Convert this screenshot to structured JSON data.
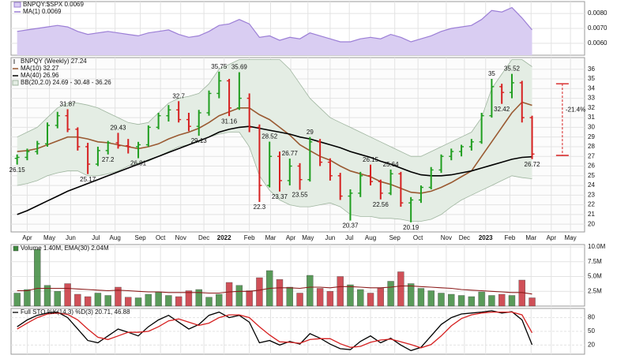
{
  "chart_data": [
    {
      "type": "area",
      "series": [
        {
          "name": "BNPQY:$SPX 0.0069",
          "color": "#9c7fd6",
          "fill": "#d9cdf2",
          "values": [
            0.0068,
            0.0069,
            0.007,
            0.0071,
            0.0072,
            0.0071,
            0.0068,
            0.0066,
            0.0067,
            0.0068,
            0.0067,
            0.0066,
            0.0065,
            0.0067,
            0.0068,
            0.0069,
            0.0066,
            0.0064,
            0.0065,
            0.0068,
            0.0072,
            0.0073,
            0.0076,
            0.0073,
            0.0064,
            0.0065,
            0.0062,
            0.0064,
            0.0063,
            0.0067,
            0.0065,
            0.0063,
            0.0061,
            0.0061,
            0.0063,
            0.0064,
            0.0063,
            0.0066,
            0.0064,
            0.0061,
            0.0063,
            0.0065,
            0.0068,
            0.007,
            0.0071,
            0.0072,
            0.0076,
            0.0082,
            0.0081,
            0.0084,
            0.0077,
            0.0069
          ]
        }
      ],
      "ma_label": "MA(1) 0.0069",
      "ylim": [
        0.0052,
        0.0088
      ],
      "yticks": [
        {
          "value": 0.006,
          "label": "0.0060"
        },
        {
          "value": 0.007,
          "label": "0.0070"
        },
        {
          "value": 0.008,
          "label": "0.0080"
        }
      ]
    },
    {
      "type": "ohlc",
      "title": "BNPQY (Weekly) 27.24",
      "up_color": "#1f9e1f",
      "down_color": "#d62020",
      "open": [
        26.8,
        26.9,
        27.5,
        28.3,
        30.2,
        31.2,
        29.8,
        28.0,
        26.2,
        27.6,
        28.4,
        28.1,
        28.0,
        28.2,
        30.0,
        31.2,
        31.8,
        30.8,
        30.1,
        31.5,
        33.5,
        34.8,
        32.0,
        33.0,
        30.0,
        24.0,
        27.0,
        24.5,
        26.0,
        24.6,
        28.5,
        26.4,
        25.0,
        22.9,
        23.2,
        25.0,
        24.4,
        23.2,
        25.2,
        22.2,
        22.5,
        23.8,
        25.6,
        27.0,
        27.5,
        28.0,
        28.5,
        31.2,
        34.2,
        33.6,
        34.6,
        31.0
      ],
      "high": [
        27.2,
        27.8,
        28.6,
        30.5,
        31.6,
        31.87,
        30.0,
        28.4,
        28.0,
        28.6,
        29.43,
        28.8,
        28.5,
        30.2,
        31.5,
        32.3,
        32.7,
        31.5,
        31.8,
        33.8,
        35.75,
        35.0,
        35.69,
        33.5,
        30.3,
        28.52,
        27.5,
        26.77,
        26.3,
        29.0,
        28.8,
        26.8,
        25.3,
        23.6,
        25.4,
        26.15,
        24.6,
        25.64,
        25.4,
        22.8,
        24.0,
        25.9,
        27.2,
        27.8,
        28.2,
        28.8,
        31.5,
        35.0,
        34.5,
        35.52,
        34.8,
        31.2
      ],
      "low": [
        26.15,
        26.6,
        27.2,
        28.0,
        29.9,
        29.5,
        27.6,
        25.17,
        26.0,
        27.2,
        27.8,
        27.3,
        26.81,
        28.0,
        29.8,
        30.6,
        30.5,
        29.6,
        29.13,
        31.2,
        33.0,
        31.16,
        31.8,
        29.5,
        22.3,
        23.8,
        23.37,
        24.0,
        23.55,
        24.4,
        26.0,
        24.5,
        22.5,
        20.37,
        22.8,
        24.0,
        22.56,
        23.0,
        21.8,
        20.19,
        22.2,
        23.6,
        25.3,
        26.6,
        27.0,
        27.6,
        28.3,
        31.0,
        32.42,
        33.0,
        30.5,
        26.72
      ],
      "close": [
        26.9,
        27.5,
        28.3,
        30.2,
        31.2,
        29.8,
        28.0,
        26.2,
        27.6,
        28.4,
        28.1,
        28.0,
        28.2,
        30.0,
        31.2,
        31.8,
        30.8,
        30.1,
        31.5,
        33.5,
        34.8,
        32.0,
        33.0,
        30.0,
        24.0,
        27.0,
        24.5,
        26.0,
        24.6,
        28.5,
        26.4,
        25.0,
        22.9,
        23.2,
        25.0,
        24.4,
        23.2,
        25.2,
        22.2,
        22.5,
        23.8,
        25.6,
        27.0,
        27.5,
        28.0,
        28.5,
        31.2,
        34.2,
        33.6,
        34.6,
        31.0,
        27.24
      ],
      "series": [
        {
          "name": "MA(10) 32.27",
          "color": "#9a5a32",
          "values": [
            27.5,
            27.6,
            27.8,
            28.2,
            28.6,
            29.0,
            29.0,
            28.8,
            28.5,
            28.4,
            28.2,
            28.0,
            27.8,
            28.0,
            28.3,
            28.8,
            29.2,
            29.5,
            29.9,
            30.5,
            31.2,
            31.6,
            32.0,
            32.0,
            31.3,
            30.8,
            30.0,
            29.2,
            28.2,
            27.6,
            27.0,
            26.6,
            26.0,
            25.5,
            25.2,
            24.9,
            24.4,
            24.1,
            23.7,
            23.3,
            23.2,
            23.4,
            23.8,
            24.3,
            24.9,
            25.5,
            27.0,
            28.5,
            30.0,
            31.5,
            32.6,
            32.27
          ]
        },
        {
          "name": "MA(40) 26.96",
          "color": "#000000",
          "values": [
            21.0,
            21.4,
            21.9,
            22.4,
            22.9,
            23.4,
            23.8,
            24.2,
            24.6,
            25.0,
            25.4,
            25.8,
            26.2,
            26.6,
            27.0,
            27.4,
            27.8,
            28.2,
            28.6,
            29.0,
            29.5,
            29.8,
            30.0,
            30.1,
            29.9,
            29.7,
            29.5,
            29.3,
            29.0,
            28.8,
            28.5,
            28.2,
            27.9,
            27.5,
            27.2,
            26.9,
            26.5,
            26.2,
            25.8,
            25.4,
            25.1,
            25.0,
            25.0,
            25.1,
            25.3,
            25.5,
            25.8,
            26.1,
            26.4,
            26.7,
            26.9,
            26.96
          ]
        }
      ],
      "band": {
        "name": "BB(20,2.0) 24.69 - 30.48 - 36.26",
        "color": "#9fb59f",
        "fill": "#e4ede4",
        "upper": [
          29,
          29.5,
          30,
          31,
          32,
          32.5,
          32.5,
          32.3,
          32,
          31.5,
          31,
          30.5,
          30.3,
          30.5,
          31.5,
          32.5,
          33,
          33.2,
          33.5,
          34.5,
          36,
          36.5,
          37,
          37,
          37,
          37,
          37,
          36,
          34.5,
          33,
          32,
          31,
          30.5,
          30,
          29.5,
          29,
          28.5,
          28,
          27.5,
          27,
          27,
          27.5,
          28,
          28.5,
          29,
          29.5,
          31,
          34,
          35.5,
          37,
          37,
          36.26
        ],
        "lower": [
          24,
          24.2,
          24.5,
          25,
          25.3,
          25.5,
          25.5,
          25,
          25,
          25.2,
          25.5,
          26,
          26.3,
          26.5,
          27,
          27.5,
          28,
          28.2,
          28.5,
          29,
          29.3,
          29.5,
          29.5,
          28,
          25,
          23.5,
          22.5,
          22,
          21.8,
          21.8,
          22,
          22.2,
          21.8,
          21,
          20.8,
          20.8,
          20.6,
          20.6,
          20.5,
          20.3,
          20.3,
          20.5,
          21,
          21.8,
          22.5,
          23,
          23.5,
          24,
          24.5,
          25,
          24.8,
          24.69
        ]
      },
      "annotations": [
        {
          "index": 0,
          "value": 26.15,
          "pos": "below"
        },
        {
          "index": 5,
          "value": 31.87,
          "pos": "above"
        },
        {
          "index": 7,
          "value": 25.17,
          "pos": "below"
        },
        {
          "index": 9,
          "value": 27.2,
          "pos": "below"
        },
        {
          "index": 10,
          "value": 29.43,
          "pos": "above"
        },
        {
          "index": 12,
          "value": 26.81,
          "pos": "below"
        },
        {
          "index": 16,
          "value": 32.7,
          "pos": "above"
        },
        {
          "index": 18,
          "value": 29.13,
          "pos": "below"
        },
        {
          "index": 20,
          "value": 35.75,
          "pos": "above"
        },
        {
          "index": 21,
          "value": 31.16,
          "pos": "below"
        },
        {
          "index": 22,
          "value": 35.69,
          "pos": "above"
        },
        {
          "index": 25,
          "value": 28.52,
          "pos": "above"
        },
        {
          "index": 24,
          "value": 22.3,
          "pos": "below"
        },
        {
          "index": 27,
          "value": 26.77,
          "pos": "above"
        },
        {
          "index": 26,
          "value": 23.37,
          "pos": "below"
        },
        {
          "index": 28,
          "value": 23.55,
          "pos": "below"
        },
        {
          "index": 29,
          "value": 29.0,
          "pos": "above"
        },
        {
          "index": 33,
          "value": 20.37,
          "pos": "below"
        },
        {
          "index": 35,
          "value": 26.15,
          "pos": "above"
        },
        {
          "index": 36,
          "value": 22.56,
          "pos": "below"
        },
        {
          "index": 37,
          "value": 25.64,
          "pos": "above"
        },
        {
          "index": 39,
          "value": 20.19,
          "pos": "below"
        },
        {
          "index": 47,
          "value": 35.0,
          "pos": "above"
        },
        {
          "index": 48,
          "value": 32.42,
          "pos": "below"
        },
        {
          "index": 49,
          "value": 35.52,
          "pos": "above"
        },
        {
          "index": 51,
          "value": 26.72,
          "pos": "below"
        }
      ],
      "bracket": {
        "label": "-21.4%",
        "from": 34.5,
        "to": 27.1,
        "index": 54,
        "color": "#d62020"
      },
      "ylim": [
        19.2,
        37.2
      ],
      "yticks": [
        20,
        21,
        22,
        23,
        24,
        25,
        26,
        27,
        28,
        29,
        30,
        31,
        32,
        33,
        34,
        35,
        36
      ],
      "xlim": [
        -0.6,
        56.2
      ],
      "xticks": [
        {
          "value": 1.0,
          "label": "Apr"
        },
        {
          "value": 3.2,
          "label": "May"
        },
        {
          "value": 5.3,
          "label": "Jun"
        },
        {
          "value": 7.8,
          "label": "Jul"
        },
        {
          "value": 9.7,
          "label": "Aug"
        },
        {
          "value": 12.2,
          "label": "Sep"
        },
        {
          "value": 14.2,
          "label": "Oct"
        },
        {
          "value": 16.2,
          "label": "Nov"
        },
        {
          "value": 18.5,
          "label": "Dec"
        },
        {
          "value": 20.5,
          "label": "2022",
          "bold": true
        },
        {
          "value": 23.0,
          "label": "Feb"
        },
        {
          "value": 25.1,
          "label": "Mar"
        },
        {
          "value": 27.1,
          "label": "Apr"
        },
        {
          "value": 28.8,
          "label": "May"
        },
        {
          "value": 31.0,
          "label": "Jun"
        },
        {
          "value": 32.9,
          "label": "Jul"
        },
        {
          "value": 35.0,
          "label": "Aug"
        },
        {
          "value": 37.4,
          "label": "Sep"
        },
        {
          "value": 39.7,
          "label": "Oct"
        },
        {
          "value": 42.5,
          "label": "Nov"
        },
        {
          "value": 44.3,
          "label": "Dec"
        },
        {
          "value": 46.4,
          "label": "2023",
          "bold": true
        },
        {
          "value": 48.8,
          "label": "Feb"
        },
        {
          "value": 50.9,
          "label": "Mar"
        },
        {
          "value": 52.9,
          "label": "Apr"
        },
        {
          "value": 54.8,
          "label": "May"
        }
      ],
      "grid": true
    },
    {
      "type": "bar",
      "title": "Volume 1.40M, EMA(30) 2.04M",
      "color_up": "#3e8a3e",
      "color_down": "#c8323c",
      "values": [
        2200000,
        2800000,
        9600000,
        3500000,
        2500000,
        3800000,
        2000000,
        1600000,
        2200000,
        1800000,
        3200000,
        1500000,
        1400000,
        2000000,
        2400000,
        1800000,
        1600000,
        2600000,
        2800000,
        1500000,
        2000000,
        4000000,
        3500000,
        2600000,
        4800000,
        6000000,
        4500000,
        3200000,
        2200000,
        5200000,
        3000000,
        2500000,
        5000000,
        3600000,
        2800000,
        2200000,
        3000000,
        4200000,
        5800000,
        3800000,
        3000000,
        2600000,
        2200000,
        2000000,
        1800000,
        1600000,
        2400000,
        1800000,
        2000000,
        1800000,
        4400000,
        1400000
      ],
      "series": [
        {
          "name": "EMA(30)",
          "color": "#8b1a1a",
          "values": [
            2600000,
            2600000,
            3000000,
            3000000,
            3000000,
            3000000,
            2900000,
            2800000,
            2700000,
            2600000,
            2700000,
            2600000,
            2500000,
            2400000,
            2400000,
            2300000,
            2300000,
            2300000,
            2300000,
            2200000,
            2200000,
            2400000,
            2500000,
            2500000,
            2700000,
            3000000,
            3100000,
            3100000,
            3000000,
            3200000,
            3200000,
            3100000,
            3300000,
            3300000,
            3200000,
            3100000,
            3100000,
            3200000,
            3400000,
            3400000,
            3300000,
            3200000,
            3100000,
            3000000,
            2800000,
            2700000,
            2600000,
            2500000,
            2400000,
            2300000,
            2300000,
            2040000
          ]
        }
      ],
      "ylim": [
        0,
        10400000
      ],
      "yticks": [
        {
          "value": 2500000,
          "label": "2.5M"
        },
        {
          "value": 5000000,
          "label": "5.0M"
        },
        {
          "value": 7500000,
          "label": "7.5M"
        },
        {
          "value": 10000000,
          "label": "10.0M"
        }
      ]
    },
    {
      "type": "line",
      "title": "Full STO %K(14,3) %D(3) 20.71, 46.88",
      "series": [
        {
          "name": "%K",
          "color": "#000000",
          "values": [
            60,
            75,
            85,
            90,
            92,
            80,
            55,
            30,
            25,
            40,
            55,
            48,
            40,
            60,
            75,
            85,
            70,
            55,
            65,
            85,
            92,
            80,
            85,
            70,
            25,
            30,
            20,
            28,
            22,
            45,
            35,
            22,
            12,
            10,
            28,
            40,
            25,
            35,
            20,
            8,
            15,
            40,
            65,
            80,
            88,
            90,
            92,
            95,
            90,
            93,
            75,
            20.71
          ]
        },
        {
          "name": "%D",
          "color": "#d62020",
          "values": [
            55,
            68,
            80,
            88,
            90,
            87,
            75,
            55,
            37,
            32,
            40,
            48,
            48,
            50,
            60,
            73,
            77,
            70,
            63,
            68,
            80,
            86,
            86,
            80,
            60,
            42,
            27,
            26,
            24,
            32,
            34,
            34,
            23,
            15,
            17,
            26,
            31,
            33,
            27,
            21,
            14,
            21,
            40,
            62,
            78,
            86,
            90,
            92,
            92,
            92,
            86,
            46.88
          ]
        }
      ],
      "ylim": [
        0,
        100
      ],
      "yticks": [
        20,
        50,
        80
      ]
    }
  ]
}
